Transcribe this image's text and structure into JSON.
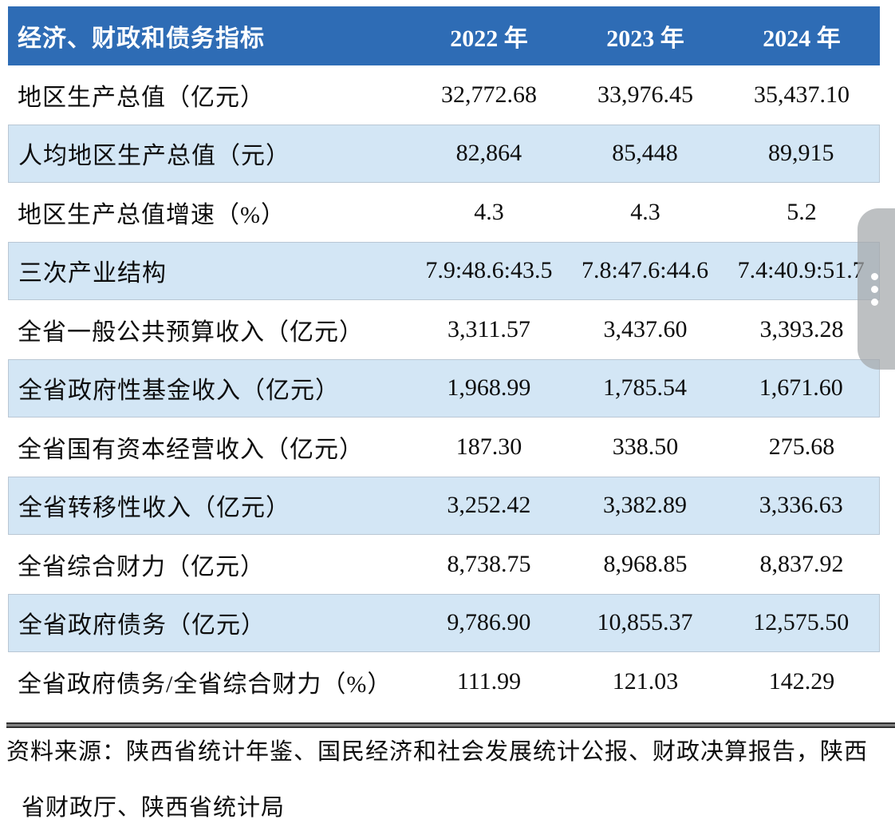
{
  "table": {
    "header": {
      "indicator": "经济、财政和债务指标",
      "years": [
        "2022 年",
        "2023 年",
        "2024 年"
      ]
    },
    "rows": [
      {
        "label": "地区生产总值（亿元）",
        "values": [
          "32,772.68",
          "33,976.45",
          "35,437.10"
        ]
      },
      {
        "label": "人均地区生产总值（元）",
        "values": [
          "82,864",
          "85,448",
          "89,915"
        ]
      },
      {
        "label": "地区生产总值增速（%）",
        "values": [
          "4.3",
          "4.3",
          "5.2"
        ]
      },
      {
        "label": "三次产业结构",
        "values": [
          "7.9:48.6:43.5",
          "7.8:47.6:44.6",
          "7.4:40.9:51.7"
        ]
      },
      {
        "label": "全省一般公共预算收入（亿元）",
        "values": [
          "3,311.57",
          "3,437.60",
          "3,393.28"
        ]
      },
      {
        "label": "全省政府性基金收入（亿元）",
        "values": [
          "1,968.99",
          "1,785.54",
          "1,671.60"
        ]
      },
      {
        "label": "全省国有资本经营收入（亿元）",
        "values": [
          "187.30",
          "338.50",
          "275.68"
        ]
      },
      {
        "label": "全省转移性收入（亿元）",
        "values": [
          "3,252.42",
          "3,382.89",
          "3,336.63"
        ]
      },
      {
        "label": "全省综合财力（亿元）",
        "values": [
          "8,738.75",
          "8,968.85",
          "8,837.92"
        ]
      },
      {
        "label": "全省政府债务（亿元）",
        "values": [
          "9,786.90",
          "10,855.37",
          "12,575.50"
        ]
      },
      {
        "label": "全省政府债务/全省综合财力（%）",
        "values": [
          "111.99",
          "121.03",
          "142.29"
        ]
      }
    ]
  },
  "source_note": {
    "line1": "资料来源：陕西省统计年鉴、国民经济和社会发展统计公报、财政决算报告，陕西",
    "line2": "省财政厅、陕西省统计局"
  },
  "scroll_handle": {
    "dots": 3
  },
  "colors": {
    "header_bg": "#2e6cb5",
    "header_text": "#ffffff",
    "row_alt_bg": "#d3e6f5",
    "row_border": "#b9c7d4",
    "text": "#0d0d0d"
  }
}
